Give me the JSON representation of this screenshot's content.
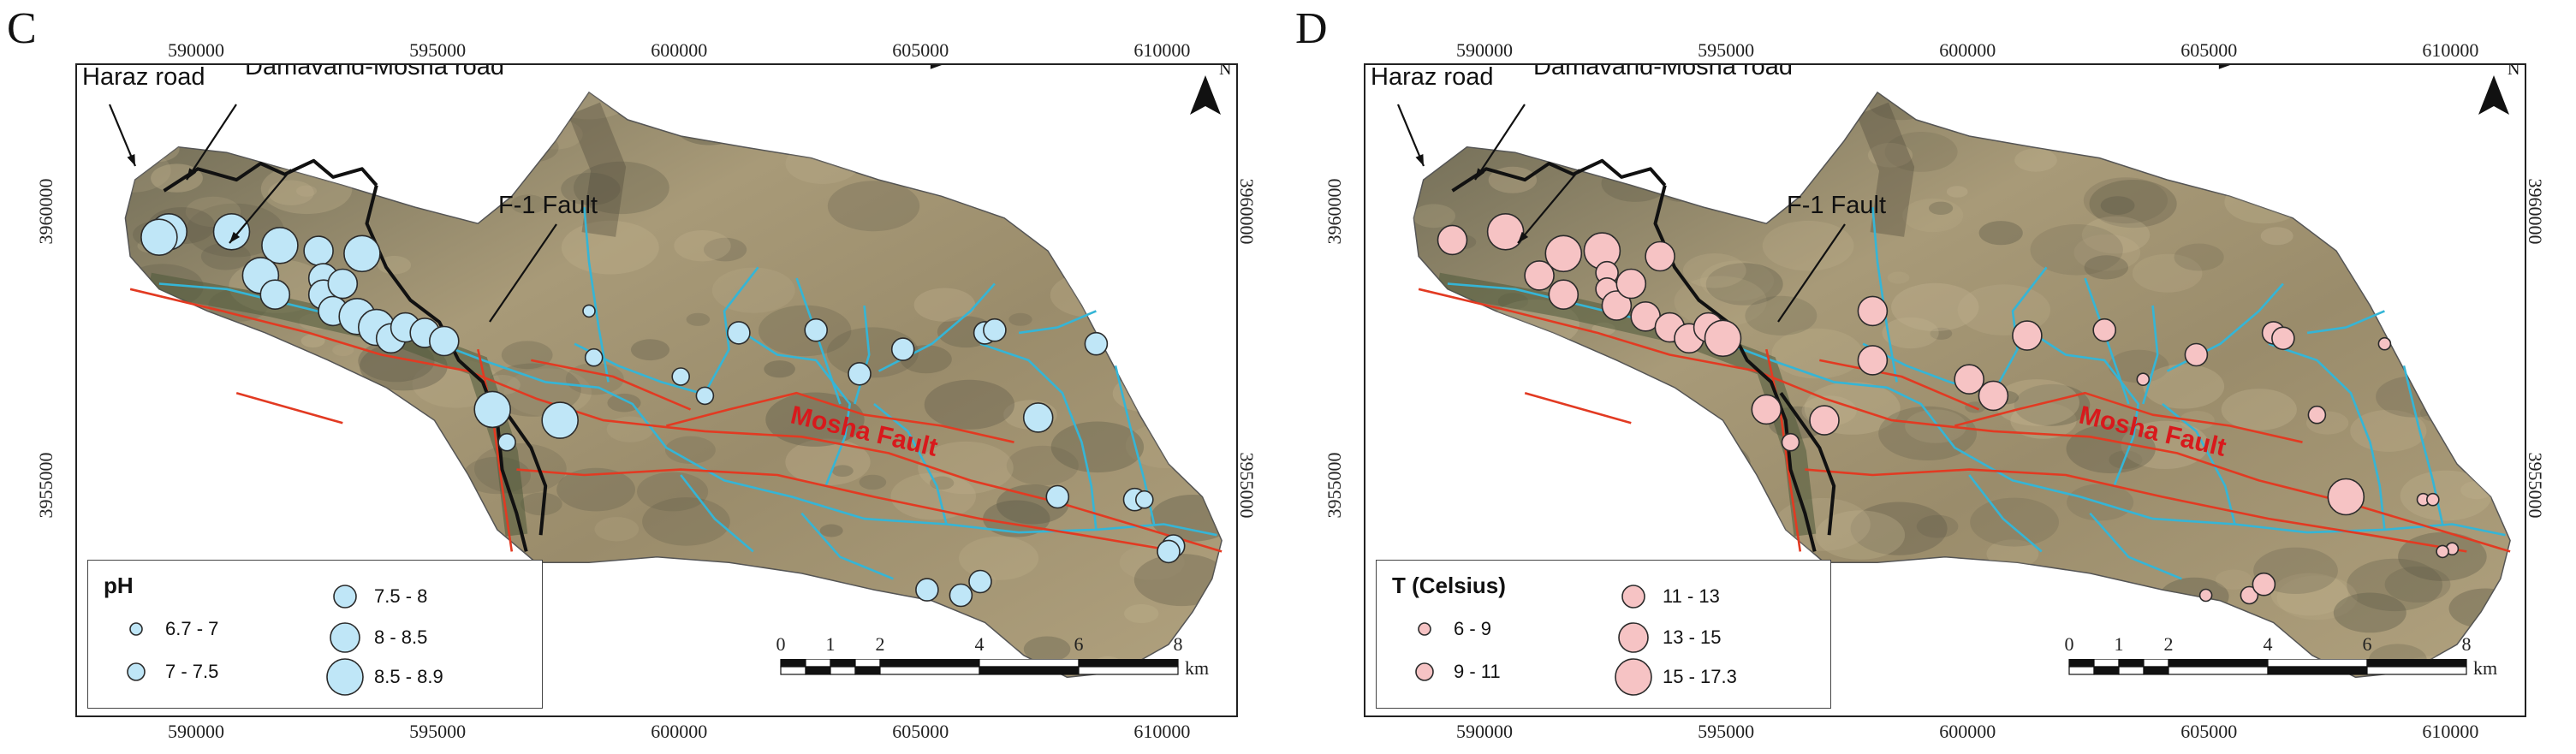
{
  "panels": [
    {
      "id": "C",
      "letter": "C",
      "x_ticks": [
        "590000",
        "595000",
        "600000",
        "605000",
        "610000"
      ],
      "y_ticks": [
        "3960000",
        "3955000"
      ],
      "north": "N",
      "labels": {
        "haraz_road": "Haraz road",
        "damavand_mosha_road": "Damavand-Mosha road",
        "f1_fault": "F-1 Fault",
        "mosha_fault": "Mosha Fault"
      },
      "legend": {
        "title": "pH",
        "classes": [
          "6.7 - 7",
          "7 - 7.5",
          "7.5 - 8",
          "8 - 8.5",
          "8.5 - 8.9"
        ]
      },
      "marker_fill": "#bfe6f7",
      "marker_stroke": "#2b2b2b",
      "scale": {
        "ticks": [
          "0",
          "1",
          "2",
          "4",
          "6",
          "8"
        ],
        "unit": "km"
      },
      "samples": [
        {
          "x": 589400,
          "y": 3959650,
          "c": 4
        },
        {
          "x": 589200,
          "y": 3959550,
          "c": 4
        },
        {
          "x": 590700,
          "y": 3959650,
          "c": 4
        },
        {
          "x": 591700,
          "y": 3959400,
          "c": 4
        },
        {
          "x": 591300,
          "y": 3958850,
          "c": 4
        },
        {
          "x": 591600,
          "y": 3958500,
          "c": 3
        },
        {
          "x": 592500,
          "y": 3959300,
          "c": 3
        },
        {
          "x": 592600,
          "y": 3958800,
          "c": 3
        },
        {
          "x": 592600,
          "y": 3958500,
          "c": 3
        },
        {
          "x": 592800,
          "y": 3958200,
          "c": 3
        },
        {
          "x": 593000,
          "y": 3958700,
          "c": 3
        },
        {
          "x": 593400,
          "y": 3959250,
          "c": 4
        },
        {
          "x": 593300,
          "y": 3958100,
          "c": 4
        },
        {
          "x": 593700,
          "y": 3957900,
          "c": 4
        },
        {
          "x": 594000,
          "y": 3957700,
          "c": 3
        },
        {
          "x": 594300,
          "y": 3957900,
          "c": 3
        },
        {
          "x": 594700,
          "y": 3957800,
          "c": 3
        },
        {
          "x": 595100,
          "y": 3957650,
          "c": 3
        },
        {
          "x": 596100,
          "y": 3956400,
          "c": 4
        },
        {
          "x": 597500,
          "y": 3956200,
          "c": 4
        },
        {
          "x": 596400,
          "y": 3955800,
          "c": 1
        },
        {
          "x": 598100,
          "y": 3958200,
          "c": 0
        },
        {
          "x": 598200,
          "y": 3957350,
          "c": 1
        },
        {
          "x": 600000,
          "y": 3957000,
          "c": 1
        },
        {
          "x": 600500,
          "y": 3956650,
          "c": 1
        },
        {
          "x": 601200,
          "y": 3957800,
          "c": 2
        },
        {
          "x": 602800,
          "y": 3957850,
          "c": 2
        },
        {
          "x": 603700,
          "y": 3957050,
          "c": 2
        },
        {
          "x": 604600,
          "y": 3957500,
          "c": 2
        },
        {
          "x": 606300,
          "y": 3957800,
          "c": 2
        },
        {
          "x": 606500,
          "y": 3957850,
          "c": 2
        },
        {
          "x": 608600,
          "y": 3957600,
          "c": 2
        },
        {
          "x": 607400,
          "y": 3956250,
          "c": 3
        },
        {
          "x": 607800,
          "y": 3954800,
          "c": 2
        },
        {
          "x": 609400,
          "y": 3954750,
          "c": 2
        },
        {
          "x": 609600,
          "y": 3954750,
          "c": 1
        },
        {
          "x": 610200,
          "y": 3953900,
          "c": 2
        },
        {
          "x": 610100,
          "y": 3953800,
          "c": 2
        },
        {
          "x": 605100,
          "y": 3953100,
          "c": 2
        },
        {
          "x": 605800,
          "y": 3953000,
          "c": 2
        },
        {
          "x": 606200,
          "y": 3953250,
          "c": 2
        }
      ]
    },
    {
      "id": "D",
      "letter": "D",
      "x_ticks": [
        "590000",
        "595000",
        "600000",
        "605000",
        "610000"
      ],
      "y_ticks": [
        "3960000",
        "3955000"
      ],
      "north": "N",
      "labels": {
        "haraz_road": "Haraz road",
        "damavand_mosha_road": "Damavand-Mosha road",
        "f1_fault": "F-1 Fault",
        "mosha_fault": "Mosha Fault"
      },
      "legend": {
        "title": "T (Celsius)",
        "classes": [
          "6 - 9",
          "9 - 11",
          "11 - 13",
          "13 - 15",
          "15 - 17.3"
        ]
      },
      "marker_fill": "#f6c3c4",
      "marker_stroke": "#2b2b2b",
      "scale": {
        "ticks": [
          "0",
          "1",
          "2",
          "4",
          "6",
          "8"
        ],
        "unit": "km"
      },
      "samples": [
        {
          "x": 589300,
          "y": 3959500,
          "c": 3
        },
        {
          "x": 590400,
          "y": 3959650,
          "c": 4
        },
        {
          "x": 591100,
          "y": 3958850,
          "c": 3
        },
        {
          "x": 591600,
          "y": 3959250,
          "c": 4
        },
        {
          "x": 591600,
          "y": 3958500,
          "c": 3
        },
        {
          "x": 592400,
          "y": 3959300,
          "c": 4
        },
        {
          "x": 592500,
          "y": 3958900,
          "c": 2
        },
        {
          "x": 592500,
          "y": 3958600,
          "c": 2
        },
        {
          "x": 592700,
          "y": 3958300,
          "c": 3
        },
        {
          "x": 593000,
          "y": 3958700,
          "c": 3
        },
        {
          "x": 593600,
          "y": 3959200,
          "c": 3
        },
        {
          "x": 593300,
          "y": 3958100,
          "c": 3
        },
        {
          "x": 593800,
          "y": 3957900,
          "c": 3
        },
        {
          "x": 594200,
          "y": 3957700,
          "c": 3
        },
        {
          "x": 594600,
          "y": 3957900,
          "c": 3
        },
        {
          "x": 594900,
          "y": 3957700,
          "c": 4
        },
        {
          "x": 595800,
          "y": 3956400,
          "c": 3
        },
        {
          "x": 597000,
          "y": 3956200,
          "c": 3
        },
        {
          "x": 596300,
          "y": 3955800,
          "c": 1
        },
        {
          "x": 598000,
          "y": 3958200,
          "c": 3
        },
        {
          "x": 598000,
          "y": 3957300,
          "c": 3
        },
        {
          "x": 600000,
          "y": 3956950,
          "c": 3
        },
        {
          "x": 600500,
          "y": 3956650,
          "c": 3
        },
        {
          "x": 601200,
          "y": 3957750,
          "c": 3
        },
        {
          "x": 602800,
          "y": 3957850,
          "c": 2
        },
        {
          "x": 603600,
          "y": 3956950,
          "c": 0
        },
        {
          "x": 604700,
          "y": 3957400,
          "c": 2
        },
        {
          "x": 606300,
          "y": 3957800,
          "c": 2
        },
        {
          "x": 606500,
          "y": 3957700,
          "c": 2
        },
        {
          "x": 608600,
          "y": 3957600,
          "c": 0
        },
        {
          "x": 607200,
          "y": 3956300,
          "c": 1
        },
        {
          "x": 607800,
          "y": 3954800,
          "c": 4
        },
        {
          "x": 609400,
          "y": 3954750,
          "c": 0
        },
        {
          "x": 609600,
          "y": 3954750,
          "c": 0
        },
        {
          "x": 610000,
          "y": 3953850,
          "c": 0
        },
        {
          "x": 609800,
          "y": 3953800,
          "c": 0
        },
        {
          "x": 604900,
          "y": 3953000,
          "c": 0
        },
        {
          "x": 605800,
          "y": 3953000,
          "c": 1
        },
        {
          "x": 606100,
          "y": 3953200,
          "c": 2
        }
      ]
    }
  ],
  "colors": {
    "road": "#111111",
    "fault": "#e23a22",
    "river": "#35b5d6",
    "terrain_light": "#a89a78",
    "terrain_dark": "#6e6a55",
    "vegetation": "#4f5a3a"
  }
}
